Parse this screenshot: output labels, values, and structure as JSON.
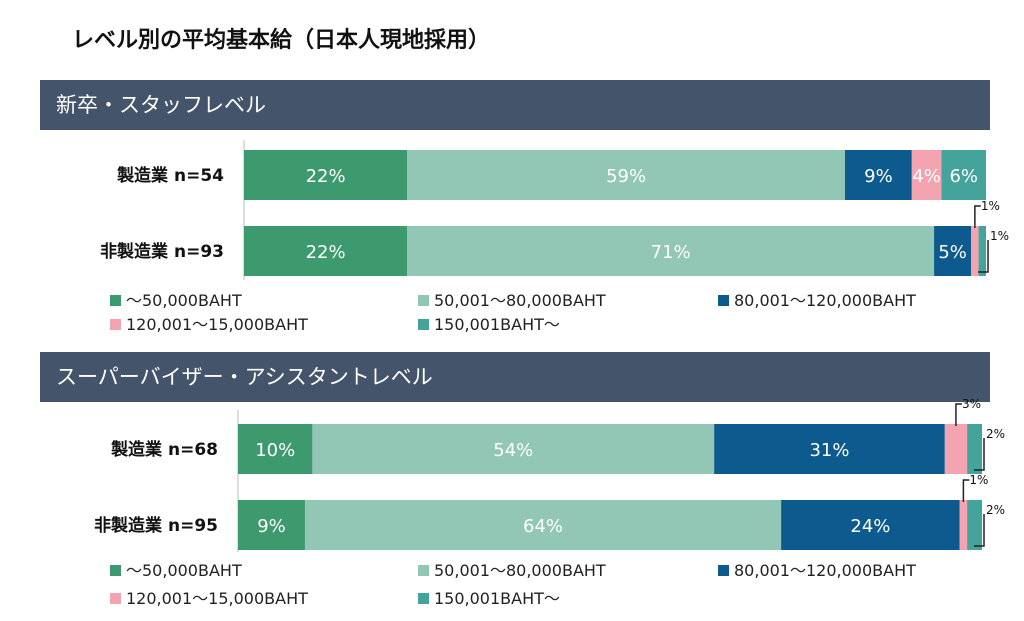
{
  "title": "レベル別の平均基本給（日本人現地採用）",
  "colors": {
    "header_bg": "#44546a",
    "cat1": "#3d9a6e",
    "cat2": "#93c7b5",
    "cat3": "#0c5a8e",
    "cat4": "#f4a3b1",
    "cat5": "#44a39b"
  },
  "chart_data": [
    {
      "type": "bar",
      "orientation": "horizontal-stacked-100",
      "title": "新卒・スタッフレベル",
      "categories": [
        "製造業 n=54",
        "非製造業 n=93"
      ],
      "series": [
        {
          "name": "〜50,000BAHT",
          "values": [
            22,
            22
          ]
        },
        {
          "name": "50,001〜80,000BAHT",
          "values": [
            59,
            71
          ]
        },
        {
          "name": "80,001〜120,000BAHT",
          "values": [
            9,
            5
          ]
        },
        {
          "name": "120,001〜15,000BAHT",
          "values": [
            4,
            1
          ]
        },
        {
          "name": "150,001BAHT〜",
          "values": [
            6,
            1
          ]
        }
      ],
      "labels": [
        [
          "22%",
          "59%",
          "9%",
          "4%",
          "6%"
        ],
        [
          "22%",
          "71%",
          "5%",
          "1%",
          "1%"
        ]
      ],
      "xlim": [
        0,
        100
      ],
      "legend": "bottom"
    },
    {
      "type": "bar",
      "orientation": "horizontal-stacked-100",
      "title": "スーパーバイザー・アシスタントレベル",
      "categories": [
        "製造業 n=68",
        "非製造業 n=95"
      ],
      "series": [
        {
          "name": "〜50,000BAHT",
          "values": [
            10,
            9
          ]
        },
        {
          "name": "50,001〜80,000BAHT",
          "values": [
            54,
            64
          ]
        },
        {
          "name": "80,001〜120,000BAHT",
          "values": [
            31,
            24
          ]
        },
        {
          "name": "120,001〜15,000BAHT",
          "values": [
            3,
            1
          ]
        },
        {
          "name": "150,001BAHT〜",
          "values": [
            2,
            2
          ]
        }
      ],
      "labels": [
        [
          "10%",
          "54%",
          "31%",
          "3%",
          "2%"
        ],
        [
          "9%",
          "64%",
          "24%",
          "1%",
          "2%"
        ]
      ],
      "xlim": [
        0,
        100
      ],
      "legend": "bottom"
    }
  ]
}
